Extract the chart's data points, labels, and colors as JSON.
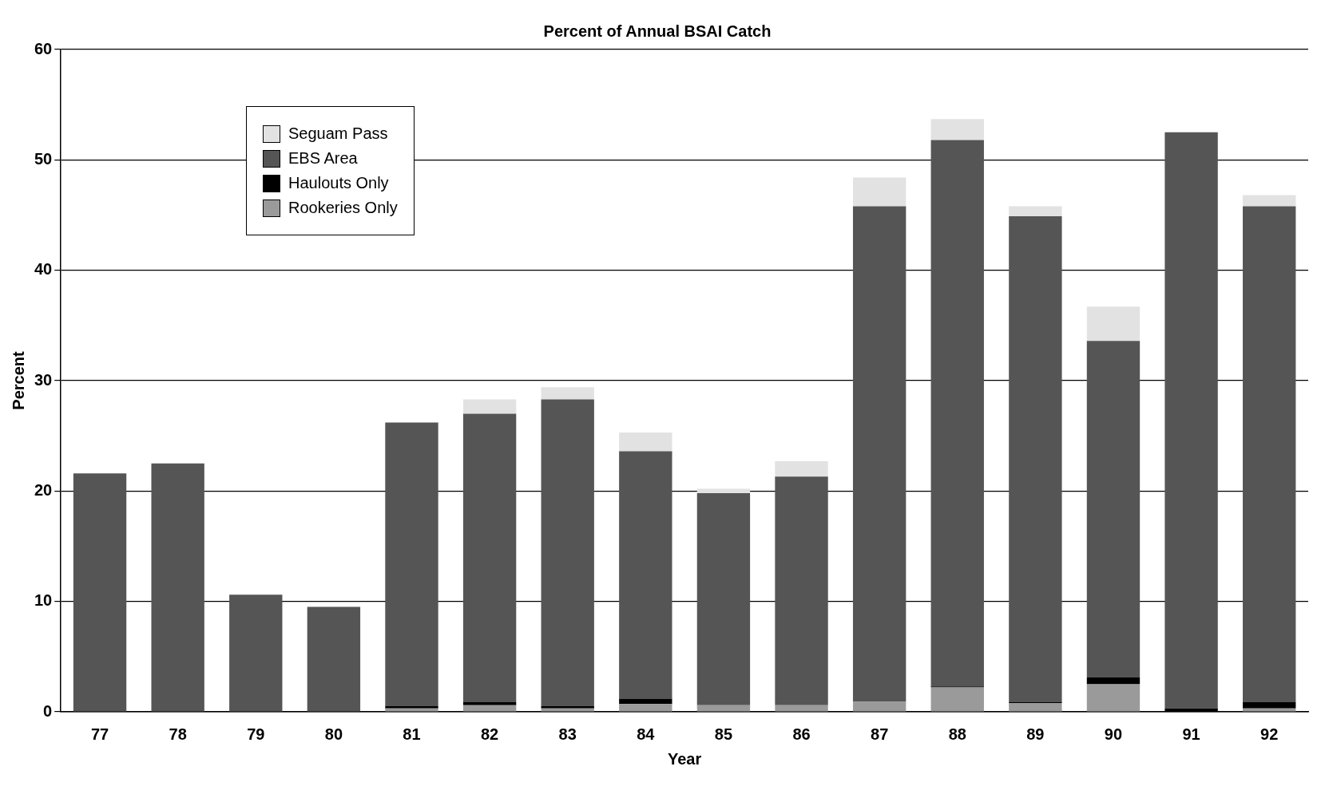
{
  "chart_data": {
    "type": "bar",
    "title": "Percent of Annual BSAI Catch",
    "xlabel": "Year",
    "ylabel": "Percent",
    "categories": [
      "77",
      "78",
      "79",
      "80",
      "81",
      "82",
      "83",
      "84",
      "85",
      "86",
      "87",
      "88",
      "89",
      "90",
      "91",
      "92"
    ],
    "stacked": true,
    "series": [
      {
        "name": "Rookeries Only",
        "color": "#9a9a9a",
        "values": [
          0,
          0,
          0,
          0,
          0.3,
          0.6,
          0.3,
          0.7,
          0.6,
          0.6,
          0.9,
          2.2,
          0.8,
          2.5,
          0,
          0.3
        ]
      },
      {
        "name": "Haulouts Only",
        "color": "#000000",
        "values": [
          0,
          0,
          0,
          0,
          0.2,
          0.3,
          0.2,
          0.5,
          0,
          0,
          0,
          0.1,
          0.1,
          0.6,
          0.3,
          0.6
        ]
      },
      {
        "name": "EBS Area",
        "color": "#555555",
        "values": [
          21.6,
          22.5,
          10.6,
          9.5,
          25.7,
          26.1,
          27.8,
          22.4,
          19.2,
          20.7,
          44.9,
          49.5,
          44.0,
          30.5,
          52.2,
          44.9
        ]
      },
      {
        "name": "Seguam Pass",
        "color": "#e2e2e2",
        "values": [
          0,
          0,
          0,
          0,
          0,
          1.3,
          1.1,
          1.7,
          0.4,
          1.4,
          2.6,
          1.9,
          0.9,
          3.1,
          0,
          1.0
        ]
      }
    ],
    "ylim": [
      0,
      60
    ],
    "yticks": [
      0,
      10,
      20,
      30,
      40,
      50,
      60
    ],
    "grid": "y",
    "legend": "top left"
  }
}
